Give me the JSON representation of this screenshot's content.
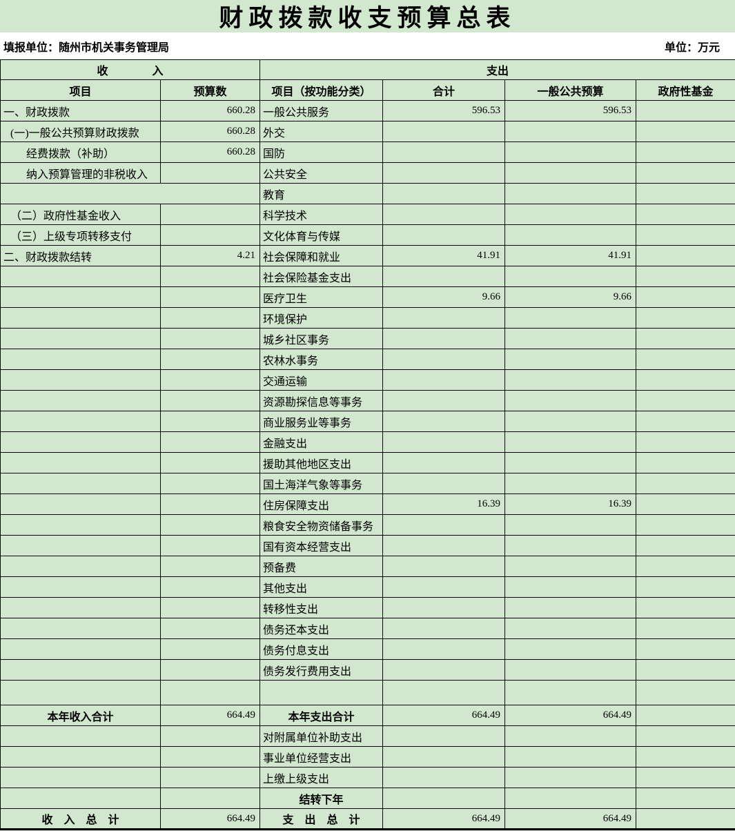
{
  "title": "财政拨款收支预算总表",
  "info": {
    "reporting_unit": "填报单位：随州市机关事务管理局",
    "unit": "单位：万元"
  },
  "colors": {
    "page_background": "#d1e7ce",
    "band_background": "#ffffff",
    "border": "#000000",
    "text": "#000000"
  },
  "table": {
    "header_income": "收　　　　入",
    "header_expenditure": "支出",
    "columns": [
      "项目",
      "预算数",
      "项目（按功能分类）",
      "合计",
      "一般公共预算",
      "政府性基金"
    ],
    "rows": [
      {
        "income": "一、财政拨款",
        "income_value": "660.28",
        "expense": "一般公共服务",
        "total": "596.53",
        "general_budget": "596.53",
        "gov_fund": ""
      },
      {
        "income": "(一)一般公共预算财政拨款",
        "indent": 1,
        "income_value": "660.28",
        "expense": "外交",
        "total": "",
        "general_budget": "",
        "gov_fund": ""
      },
      {
        "income": "经费拨款（补助）",
        "indent": 2,
        "income_value": "660.28",
        "expense": "国防",
        "total": "",
        "general_budget": "",
        "gov_fund": ""
      },
      {
        "income": "纳入预算管理的非税收入",
        "indent": 2,
        "income_value": "",
        "expense": "公共安全",
        "total": "",
        "general_budget": "",
        "gov_fund": ""
      },
      {
        "merge_left": true,
        "income": "",
        "expense": "教育",
        "total": "",
        "general_budget": "",
        "gov_fund": ""
      },
      {
        "income": "（二）政府性基金收入",
        "indent": 1,
        "income_value": "",
        "expense": "科学技术",
        "total": "",
        "general_budget": "",
        "gov_fund": ""
      },
      {
        "income": "（三）上级专项转移支付",
        "indent": 1,
        "income_value": "",
        "expense": "文化体育与传媒",
        "total": "",
        "general_budget": "",
        "gov_fund": ""
      },
      {
        "income": "二、财政拨款结转",
        "income_value": "4.21",
        "expense": "社会保障和就业",
        "total": "41.91",
        "general_budget": "41.91",
        "gov_fund": ""
      },
      {
        "income": "",
        "income_value": "",
        "expense": "社会保险基金支出",
        "total": "",
        "general_budget": "",
        "gov_fund": ""
      },
      {
        "income": "",
        "income_value": "",
        "expense": "医疗卫生",
        "total": "9.66",
        "general_budget": "9.66",
        "gov_fund": ""
      },
      {
        "income": "",
        "income_value": "",
        "expense": "环境保护",
        "total": "",
        "general_budget": "",
        "gov_fund": ""
      },
      {
        "income": "",
        "income_value": "",
        "expense": "城乡社区事务",
        "total": "",
        "general_budget": "",
        "gov_fund": ""
      },
      {
        "income": "",
        "income_value": "",
        "expense": "农林水事务",
        "total": "",
        "general_budget": "",
        "gov_fund": ""
      },
      {
        "income": "",
        "income_value": "",
        "expense": "交通运输",
        "total": "",
        "general_budget": "",
        "gov_fund": ""
      },
      {
        "income": "",
        "income_value": "",
        "expense": "资源勘探信息等事务",
        "total": "",
        "general_budget": "",
        "gov_fund": ""
      },
      {
        "income": "",
        "income_value": "",
        "expense": "商业服务业等事务",
        "total": "",
        "general_budget": "",
        "gov_fund": ""
      },
      {
        "income": "",
        "income_value": "",
        "expense": "金融支出",
        "total": "",
        "general_budget": "",
        "gov_fund": ""
      },
      {
        "income": "",
        "income_value": "",
        "expense": "援助其他地区支出",
        "total": "",
        "general_budget": "",
        "gov_fund": ""
      },
      {
        "income": "",
        "income_value": "",
        "expense": "国土海洋气象等事务",
        "total": "",
        "general_budget": "",
        "gov_fund": ""
      },
      {
        "income": "",
        "income_value": "",
        "expense": "住房保障支出",
        "total": "16.39",
        "general_budget": "16.39",
        "gov_fund": ""
      },
      {
        "income": "",
        "income_value": "",
        "expense": "粮食安全物资储备事务",
        "total": "",
        "general_budget": "",
        "gov_fund": ""
      },
      {
        "income": "",
        "income_value": "",
        "expense": "国有资本经营支出",
        "total": "",
        "general_budget": "",
        "gov_fund": ""
      },
      {
        "income": "",
        "income_value": "",
        "expense": "预备费",
        "total": "",
        "general_budget": "",
        "gov_fund": ""
      },
      {
        "income": "",
        "income_value": "",
        "expense": "其他支出",
        "total": "",
        "general_budget": "",
        "gov_fund": ""
      },
      {
        "income": "",
        "income_value": "",
        "expense": "转移性支出",
        "total": "",
        "general_budget": "",
        "gov_fund": ""
      },
      {
        "income": "",
        "income_value": "",
        "expense": "债务还本支出",
        "total": "",
        "general_budget": "",
        "gov_fund": ""
      },
      {
        "income": "",
        "income_value": "",
        "expense": "债务付息支出",
        "total": "",
        "general_budget": "",
        "gov_fund": ""
      },
      {
        "income": "",
        "income_value": "",
        "expense": "债务发行费用支出",
        "total": "",
        "general_budget": "",
        "gov_fund": ""
      },
      {
        "tall": true,
        "income": "",
        "income_value": "",
        "expense": "",
        "total": "",
        "general_budget": "",
        "gov_fund": ""
      },
      {
        "income": "本年收入合计",
        "bold_income": true,
        "income_value": "664.49",
        "expense": "本年支出合计",
        "bold_expense": true,
        "total": "664.49",
        "general_budget": "664.49",
        "gov_fund": ""
      },
      {
        "income": "",
        "income_value": "",
        "expense": "对附属单位补助支出",
        "total": "",
        "general_budget": "",
        "gov_fund": ""
      },
      {
        "income": "",
        "income_value": "",
        "expense": "事业单位经营支出",
        "total": "",
        "general_budget": "",
        "gov_fund": ""
      },
      {
        "income": "",
        "income_value": "",
        "expense": "上缴上级支出",
        "total": "",
        "general_budget": "",
        "gov_fund": ""
      },
      {
        "income": "",
        "income_value": "",
        "expense": "结转下年",
        "bold_expense": true,
        "total": "",
        "general_budget": "",
        "gov_fund": ""
      },
      {
        "income": "收　入　总　计",
        "bold_income": true,
        "income_value": "664.49",
        "expense": "支　出　总　计",
        "bold_expense": true,
        "total": "664.49",
        "general_budget": "664.49",
        "gov_fund": ""
      }
    ]
  }
}
